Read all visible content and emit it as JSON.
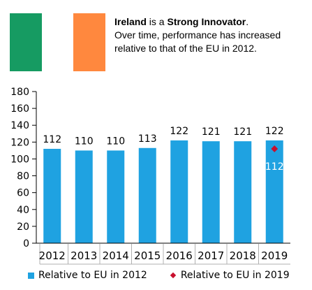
{
  "flag": {
    "colors": [
      "#169b62",
      "#ffffff",
      "#ff883e"
    ]
  },
  "header": {
    "country": "Ireland",
    "is_a": " is a ",
    "category": "Strong Innovator",
    "period": ".",
    "description": "Over time, performance has increased relative to that of the EU in 2012."
  },
  "chart_data": {
    "type": "bar",
    "categories": [
      "2012",
      "2013",
      "2014",
      "2015",
      "2016",
      "2017",
      "2018",
      "2019"
    ],
    "series": [
      {
        "name": "Relative to EU in 2012",
        "values": [
          112,
          110,
          110,
          113,
          122,
          121,
          121,
          122
        ],
        "color": "#1fa2e1"
      },
      {
        "name": "Relative to EU in 2019",
        "type": "scatter",
        "x": "2019",
        "value": 112,
        "color": "#c8102e"
      }
    ],
    "ylim": [
      0,
      180
    ],
    "yticks": [
      0,
      20,
      40,
      60,
      80,
      100,
      120,
      140,
      160,
      180
    ],
    "legend_position": "bottom",
    "grid": false
  }
}
